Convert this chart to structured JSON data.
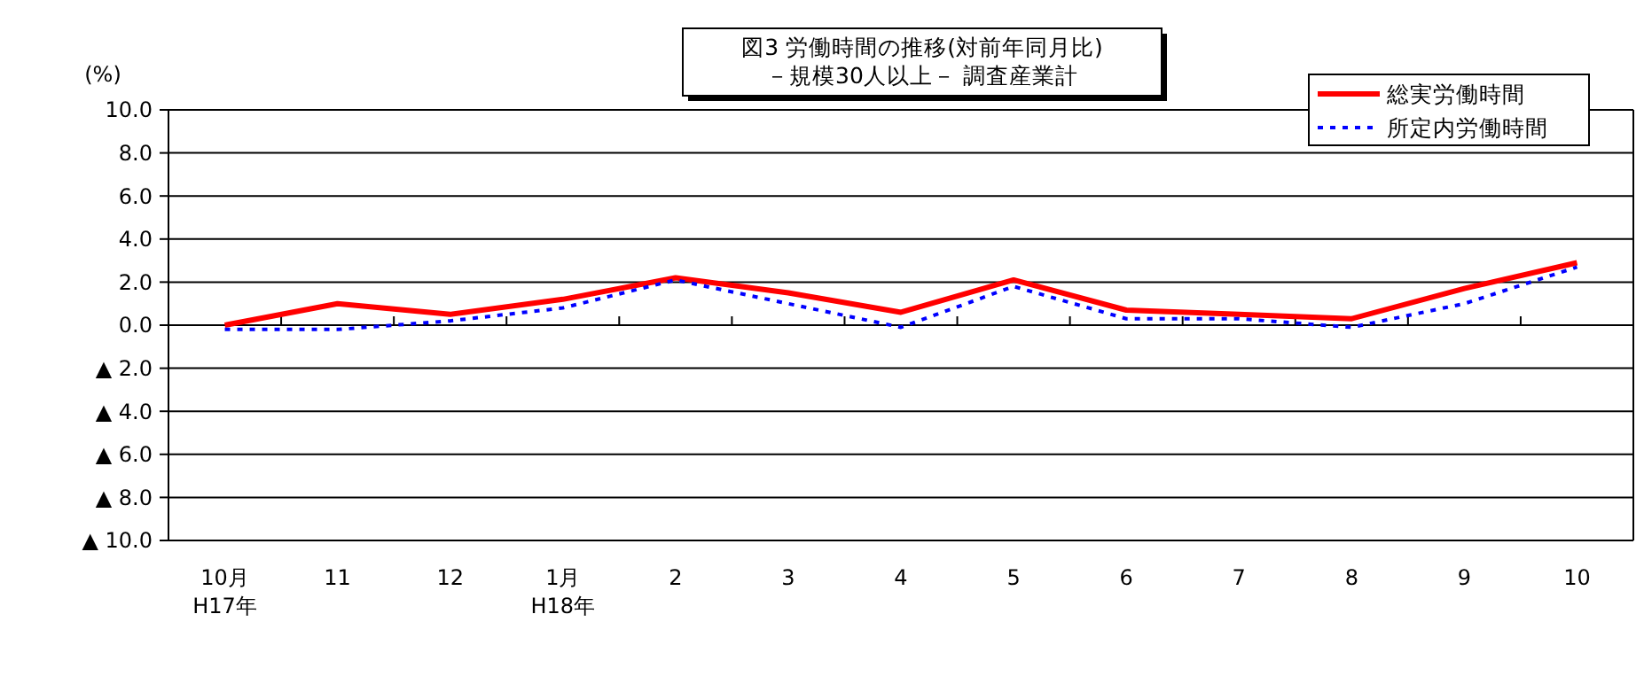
{
  "chart_data": {
    "type": "line",
    "title": "図3  労働時間の推移(対前年同月比)\n－規模30人以上－   調査産業計",
    "ylabel": "(%)",
    "categories": [
      "10月\nH17年",
      "11",
      "12",
      "1月\nH18年",
      "2",
      "3",
      "4",
      "5",
      "6",
      "7",
      "8",
      "9",
      "10"
    ],
    "series": [
      {
        "name": "総実労働時間",
        "color": "#ff0000",
        "line_style": "solid",
        "values": [
          0.0,
          1.0,
          0.5,
          1.2,
          2.2,
          1.5,
          0.6,
          2.1,
          0.7,
          0.5,
          0.3,
          1.7,
          2.9
        ]
      },
      {
        "name": "所定内労働時間",
        "color": "#0000ff",
        "line_style": "dotted",
        "values": [
          -0.2,
          -0.2,
          0.2,
          0.8,
          2.1,
          1.0,
          -0.1,
          1.8,
          0.3,
          0.3,
          -0.1,
          1.0,
          2.7
        ]
      }
    ],
    "ylim": [
      -10,
      10
    ],
    "yticks": [
      {
        "value": -10,
        "label": "▲ 10.0"
      },
      {
        "value": -8,
        "label": "▲ 8.0"
      },
      {
        "value": -6,
        "label": "▲ 6.0"
      },
      {
        "value": -4,
        "label": "▲ 4.0"
      },
      {
        "value": -2,
        "label": "▲ 2.0"
      },
      {
        "value": 0,
        "label": "0.0"
      },
      {
        "value": 2,
        "label": "2.0"
      },
      {
        "value": 4,
        "label": "4.0"
      },
      {
        "value": 6,
        "label": "6.0"
      },
      {
        "value": 8,
        "label": "8.0"
      },
      {
        "value": 10,
        "label": "10.0"
      }
    ],
    "grid": "y",
    "legend": "top right",
    "marker": "none"
  }
}
